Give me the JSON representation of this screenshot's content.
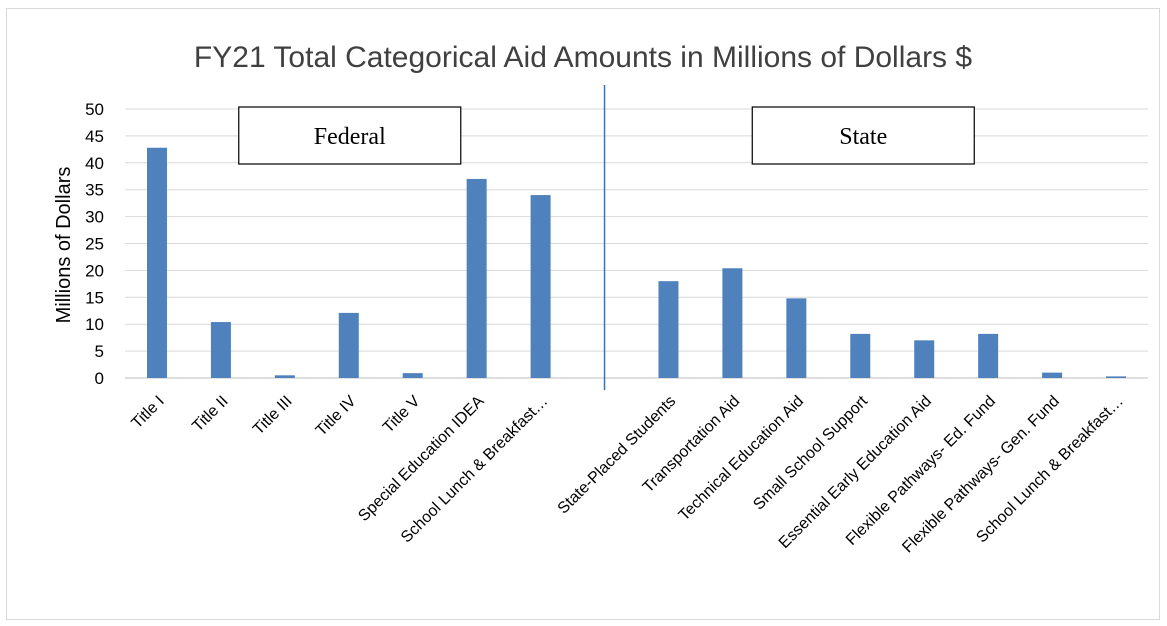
{
  "chart_data": {
    "type": "bar",
    "title": "FY21 Total Categorical Aid Amounts in Millions of Dollars $",
    "ylabel": "Millions of Dollars",
    "xlabel": "",
    "ylim": [
      0,
      50
    ],
    "yticks": [
      0,
      5,
      10,
      15,
      20,
      25,
      30,
      35,
      40,
      45,
      50
    ],
    "grid": true,
    "bar_color": "#4f81bd",
    "groups": [
      {
        "label": "Federal"
      },
      {
        "label": "State"
      }
    ],
    "categories": [
      "Title I",
      "Title II",
      "Title III",
      "Title IV",
      "Title V",
      "Special Education IDEA",
      "School Lunch & Breakfast…",
      "",
      "State-Placed Students",
      "Transportation Aid",
      "Technical Education Aid",
      "Small School Support",
      "Essential Early Education Aid",
      "Flexible Pathways- Ed. Fund",
      "Flexible Pathways- Gen. Fund",
      "School Lunch & Breakfast…"
    ],
    "values": [
      42.8,
      10.4,
      0.5,
      12.1,
      0.9,
      37.0,
      34.0,
      null,
      18.0,
      20.4,
      14.8,
      8.2,
      7.0,
      8.2,
      1.0,
      0.3
    ]
  }
}
